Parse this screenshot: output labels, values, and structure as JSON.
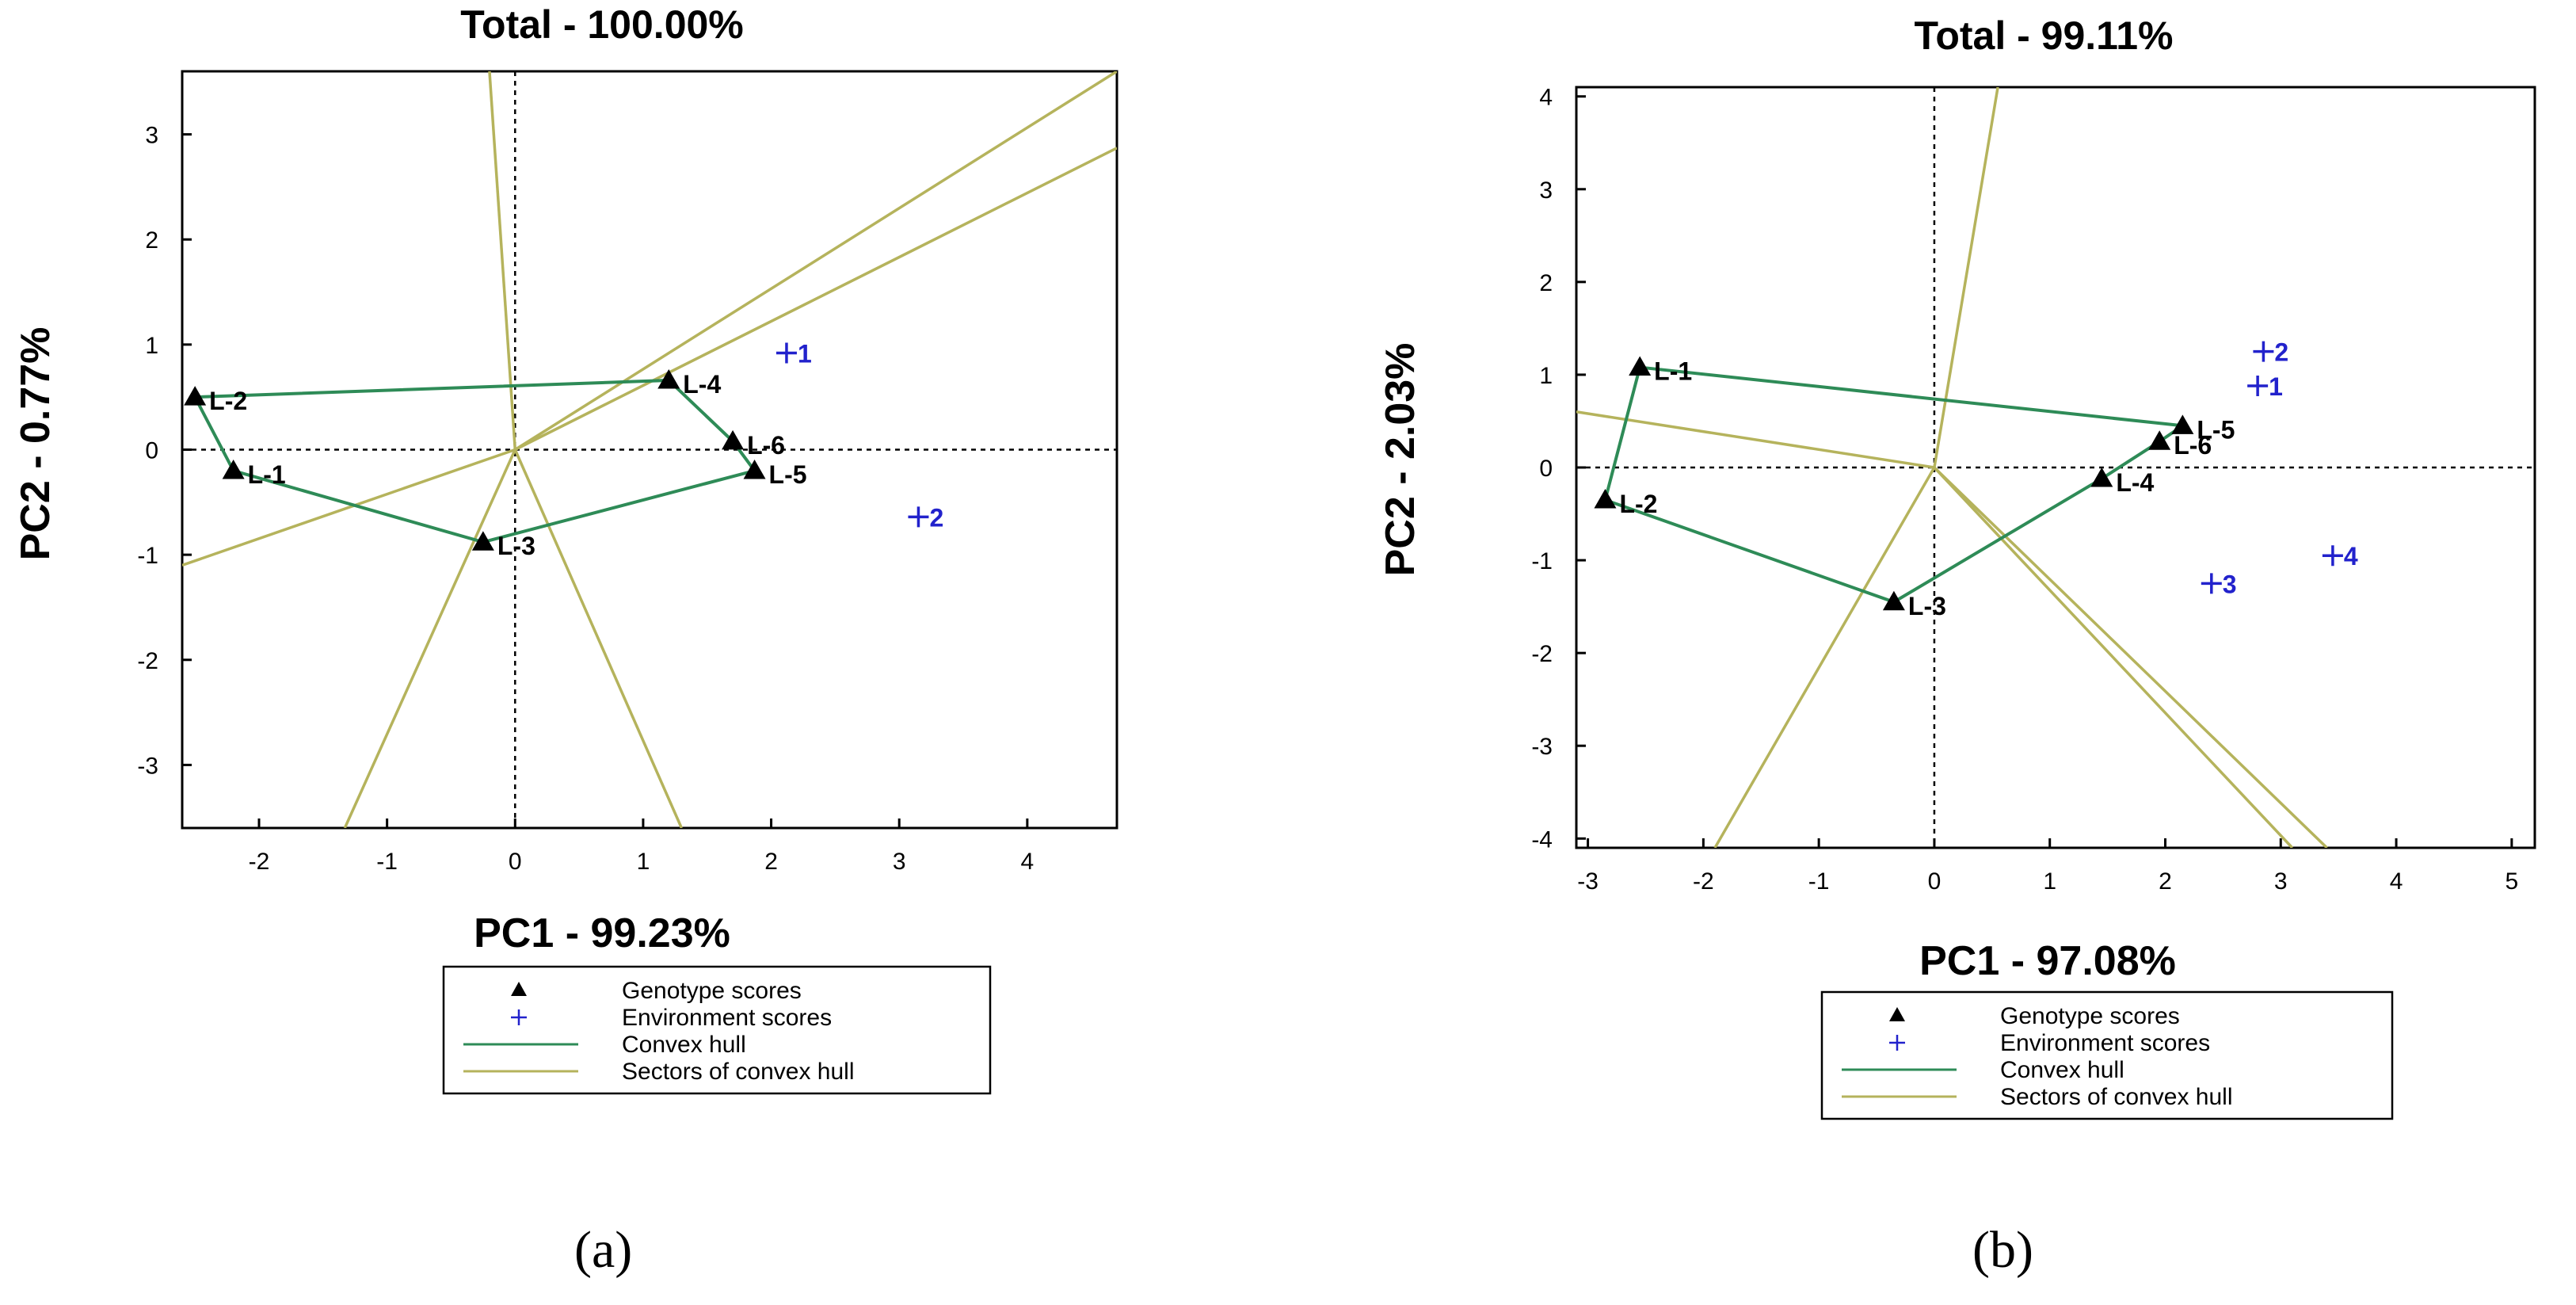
{
  "figure": {
    "panel_labels": [
      "(a)",
      "(b)"
    ]
  },
  "legend": {
    "genotype_label": "Genotype scores",
    "environment_label": "Environment scores",
    "hull_label": "Convex hull",
    "sectors_label": "Sectors of convex hull"
  },
  "colors": {
    "genotype": "#000000",
    "environment": "#2222cc",
    "hull": "#2e8b57",
    "sectors": "#b5b35c",
    "frame": "#000000"
  },
  "chart_data": [
    {
      "type": "scatter",
      "title": "Total - 100.00%",
      "xlabel": "PC1 - 99.23%",
      "ylabel": "PC2 - 0.77%",
      "xlim": [
        -2.6,
        4.7
      ],
      "ylim": [
        -3.6,
        3.6
      ],
      "xticks": [
        -2,
        -1,
        0,
        1,
        2,
        3,
        4
      ],
      "yticks": [
        -3,
        -2,
        -1,
        0,
        1,
        2,
        3
      ],
      "genotypes": [
        {
          "label": "L-1",
          "x": -2.2,
          "y": -0.2
        },
        {
          "label": "L-2",
          "x": -2.5,
          "y": 0.5
        },
        {
          "label": "L-3",
          "x": -0.25,
          "y": -0.88
        },
        {
          "label": "L-4",
          "x": 1.2,
          "y": 0.66
        },
        {
          "label": "L-5",
          "x": 1.87,
          "y": -0.2
        },
        {
          "label": "L-6",
          "x": 1.7,
          "y": 0.08
        }
      ],
      "environments": [
        {
          "label": "1",
          "x": 2.12,
          "y": 0.92
        },
        {
          "label": "2",
          "x": 3.15,
          "y": -0.64
        }
      ],
      "hull_order": [
        "L-2",
        "L-4",
        "L-6",
        "L-5",
        "L-3",
        "L-1"
      ],
      "sector_rays": [
        {
          "x": -0.2,
          "y": 3.6
        },
        {
          "x": 4.7,
          "y": 3.6
        },
        {
          "x": 4.7,
          "y": 2.87
        },
        {
          "x": -2.6,
          "y": -1.1
        },
        {
          "x": -1.33,
          "y": -3.6
        },
        {
          "x": 1.3,
          "y": -3.6
        }
      ]
    },
    {
      "type": "scatter",
      "title": "Total - 99.11%",
      "xlabel": "PC1 - 97.08%",
      "ylabel": "PC2 - 2.03%",
      "xlim": [
        -3.1,
        5.2
      ],
      "ylim": [
        -4.1,
        4.1
      ],
      "xticks": [
        -3,
        -2,
        -1,
        0,
        1,
        2,
        3,
        4,
        5
      ],
      "yticks": [
        -4,
        -3,
        -2,
        -1,
        0,
        1,
        2,
        3,
        4
      ],
      "genotypes": [
        {
          "label": "L-1",
          "x": -2.55,
          "y": 1.08
        },
        {
          "label": "L-2",
          "x": -2.85,
          "y": -0.35
        },
        {
          "label": "L-3",
          "x": -0.35,
          "y": -1.45
        },
        {
          "label": "L-4",
          "x": 1.45,
          "y": -0.12
        },
        {
          "label": "L-5",
          "x": 2.15,
          "y": 0.45
        },
        {
          "label": "L-6",
          "x": 1.95,
          "y": 0.28
        }
      ],
      "environments": [
        {
          "label": "1",
          "x": 2.8,
          "y": 0.88
        },
        {
          "label": "2",
          "x": 2.85,
          "y": 1.25
        },
        {
          "label": "3",
          "x": 2.4,
          "y": -1.25
        },
        {
          "label": "4",
          "x": 3.45,
          "y": -0.95
        }
      ],
      "hull_order": [
        "L-1",
        "L-5",
        "L-6",
        "L-4",
        "L-3",
        "L-2"
      ],
      "sector_rays": [
        {
          "x": 0.55,
          "y": 4.1
        },
        {
          "x": -3.1,
          "y": 0.6
        },
        {
          "x": -1.9,
          "y": -4.1
        },
        {
          "x": 3.4,
          "y": -4.1
        },
        {
          "x": 3.1,
          "y": -4.1
        }
      ]
    }
  ]
}
